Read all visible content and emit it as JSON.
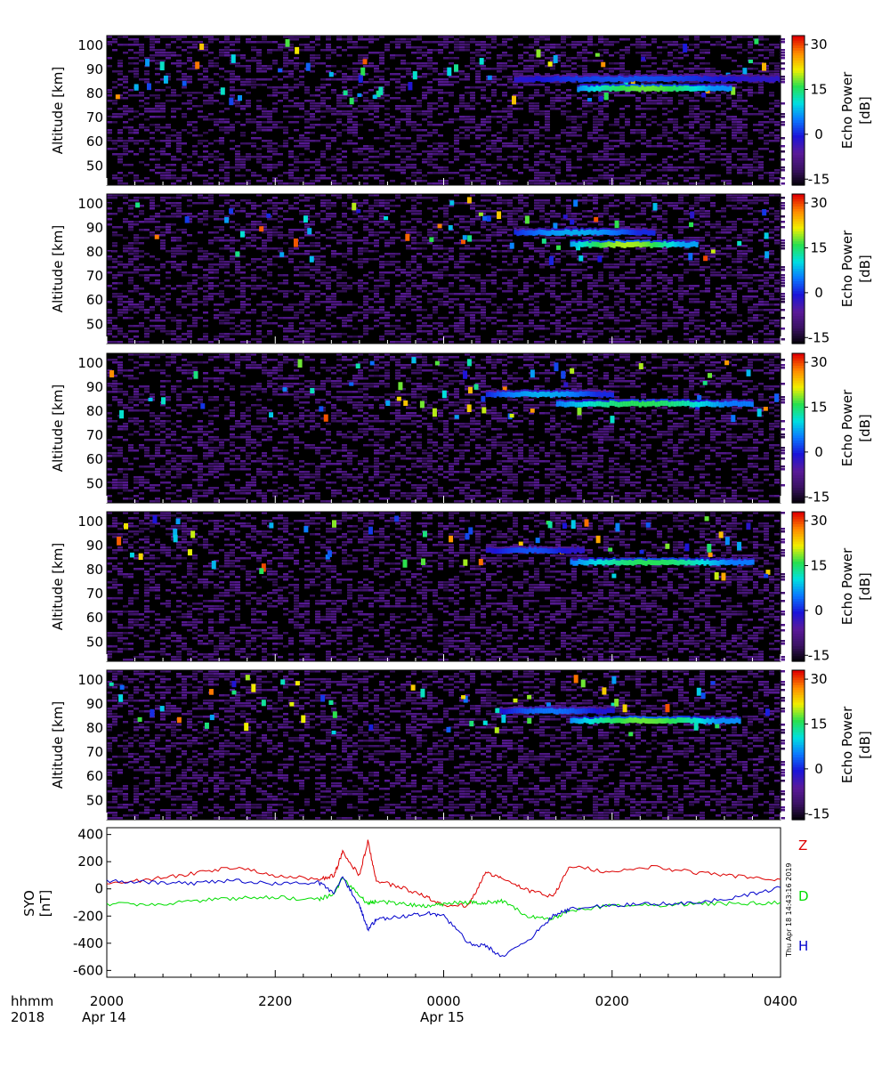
{
  "chart_data": [
    {
      "type": "heatmap",
      "panel": 1,
      "ylabel": "Altitude [km]",
      "y_ticks": [
        50,
        60,
        70,
        80,
        90,
        100
      ],
      "ylim": [
        42,
        104
      ],
      "colorbar": {
        "label_line1": "Echo Power",
        "label_line2": "[dB]",
        "ticks": [
          30,
          15,
          0,
          -15
        ],
        "range": [
          -17,
          33
        ]
      },
      "echo_layers": [
        {
          "start": "00:50",
          "end": "04:00",
          "altitude_km": 86,
          "peak_db": 3
        },
        {
          "start": "01:35",
          "end": "03:25",
          "altitude_km": 82,
          "peak_db": 18
        }
      ]
    },
    {
      "type": "heatmap",
      "panel": 2,
      "ylabel": "Altitude [km]",
      "y_ticks": [
        50,
        60,
        70,
        80,
        90,
        100
      ],
      "ylim": [
        42,
        104
      ],
      "colorbar": {
        "label_line1": "Echo Power",
        "label_line2": "[dB]",
        "ticks": [
          30,
          15,
          0,
          -15
        ],
        "range": [
          -17,
          33
        ]
      },
      "echo_layers": [
        {
          "start": "00:50",
          "end": "02:30",
          "altitude_km": 88,
          "peak_db": 8
        },
        {
          "start": "01:30",
          "end": "03:00",
          "altitude_km": 83,
          "peak_db": 20
        }
      ]
    },
    {
      "type": "heatmap",
      "panel": 3,
      "ylabel": "Altitude [km]",
      "y_ticks": [
        50,
        60,
        70,
        80,
        90,
        100
      ],
      "ylim": [
        42,
        104
      ],
      "colorbar": {
        "label_line1": "Echo Power",
        "label_line2": "[dB]",
        "ticks": [
          30,
          15,
          0,
          -15
        ],
        "range": [
          -17,
          33
        ]
      },
      "echo_layers": [
        {
          "start": "00:30",
          "end": "02:00",
          "altitude_km": 87,
          "peak_db": 8
        },
        {
          "start": "01:20",
          "end": "03:40",
          "altitude_km": 83,
          "peak_db": 16
        }
      ]
    },
    {
      "type": "heatmap",
      "panel": 4,
      "ylabel": "Altitude [km]",
      "y_ticks": [
        50,
        60,
        70,
        80,
        90,
        100
      ],
      "ylim": [
        42,
        104
      ],
      "colorbar": {
        "label_line1": "Echo Power",
        "label_line2": "[dB]",
        "ticks": [
          30,
          15,
          0,
          -15
        ],
        "range": [
          -17,
          33
        ]
      },
      "echo_layers": [
        {
          "start": "00:30",
          "end": "01:40",
          "altitude_km": 88,
          "peak_db": 3
        },
        {
          "start": "01:30",
          "end": "03:40",
          "altitude_km": 83,
          "peak_db": 16
        }
      ]
    },
    {
      "type": "heatmap",
      "panel": 5,
      "ylabel": "Altitude [km]",
      "y_ticks": [
        50,
        60,
        70,
        80,
        90,
        100
      ],
      "ylim": [
        42,
        104
      ],
      "colorbar": {
        "label_line1": "Echo Power",
        "label_line2": "[dB]",
        "ticks": [
          30,
          15,
          0,
          -15
        ],
        "range": [
          -17,
          33
        ]
      },
      "echo_layers": [
        {
          "start": "00:40",
          "end": "02:00",
          "altitude_km": 87,
          "peak_db": 5
        },
        {
          "start": "01:30",
          "end": "03:30",
          "altitude_km": 83,
          "peak_db": 18
        }
      ]
    },
    {
      "type": "line",
      "panel": 6,
      "ylabel_line1": "SYO",
      "ylabel_line2": "[nT]",
      "y_ticks": [
        400,
        200,
        0,
        -200,
        -400,
        -600
      ],
      "ylim": [
        -650,
        450
      ],
      "x_hours": [
        20,
        20.5,
        21,
        21.5,
        22,
        22.5,
        22.7,
        22.8,
        23,
        23.1,
        23.2,
        23.5,
        23.8,
        24,
        24.3,
        24.5,
        24.7,
        25,
        25.3,
        25.5,
        26,
        26.5,
        27,
        27.5,
        28
      ],
      "series": [
        {
          "name": "Z",
          "color": "#dd0000",
          "values": [
            30,
            70,
            110,
            160,
            100,
            70,
            100,
            270,
            100,
            350,
            60,
            10,
            -60,
            -120,
            -120,
            120,
            80,
            -10,
            -60,
            170,
            120,
            160,
            120,
            90,
            70
          ]
        },
        {
          "name": "D",
          "color": "#00dd00",
          "values": [
            -110,
            -120,
            -90,
            -70,
            -60,
            -80,
            -40,
            80,
            -50,
            -110,
            -90,
            -110,
            -130,
            -110,
            -100,
            -100,
            -90,
            -200,
            -220,
            -160,
            -120,
            -120,
            -110,
            -110,
            -100
          ]
        },
        {
          "name": "H",
          "color": "#0000cc",
          "values": [
            60,
            50,
            40,
            60,
            40,
            50,
            -30,
            80,
            -120,
            -300,
            -230,
            -200,
            -180,
            -200,
            -400,
            -420,
            -500,
            -380,
            -200,
            -150,
            -120,
            -110,
            -100,
            -60,
            10
          ]
        }
      ],
      "legend": [
        "Z",
        "D",
        "H"
      ],
      "timestamp": "Thu Apr 18 14:43:16 2019"
    }
  ],
  "x_axis": {
    "row1_label": "hhmm",
    "row2_label": "2018",
    "ticks": [
      "2000",
      "2200",
      "0000",
      "0200",
      "0400"
    ],
    "date_labels": [
      "Apr 14",
      "Apr 15"
    ],
    "range_hours": [
      20,
      28
    ]
  },
  "colors": {
    "background_map": "#000000",
    "colormap": [
      "#000000",
      "#3a1262",
      "#5a1a9a",
      "#1b14d8",
      "#0a78ff",
      "#00e0e0",
      "#28e050",
      "#f0f000",
      "#ff8c00",
      "#e00000"
    ]
  }
}
